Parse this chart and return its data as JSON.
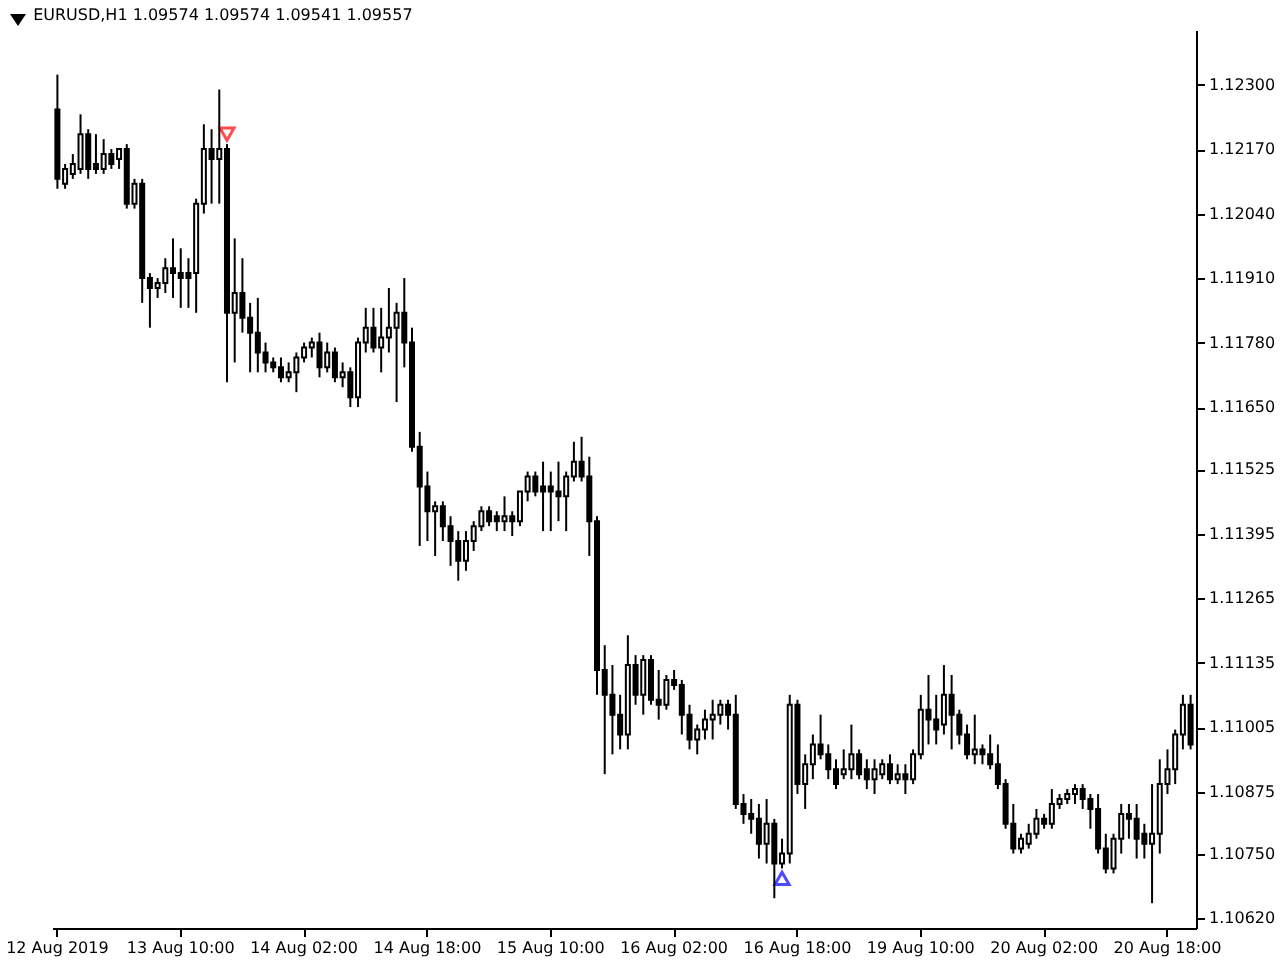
{
  "chart_data": {
    "type": "candlestick",
    "title": "EURUSD,H1  1.09574 1.09574 1.09541 1.09557",
    "color": "#000000",
    "categories": [
      "12 Aug 2019",
      null,
      null,
      null,
      null,
      null,
      null,
      null,
      null,
      null,
      null,
      null,
      null,
      null,
      null,
      null,
      "13 Aug 10:00",
      null,
      null,
      null,
      null,
      null,
      null,
      null,
      null,
      null,
      null,
      null,
      null,
      null,
      null,
      null,
      "14 Aug 02:00",
      null,
      null,
      null,
      null,
      null,
      null,
      null,
      null,
      null,
      null,
      null,
      null,
      null,
      null,
      null,
      "14 Aug 18:00",
      null,
      null,
      null,
      null,
      null,
      null,
      null,
      null,
      null,
      null,
      null,
      null,
      null,
      null,
      null,
      "15 Aug 10:00",
      null,
      null,
      null,
      null,
      null,
      null,
      null,
      null,
      null,
      null,
      null,
      null,
      null,
      null,
      null,
      "16 Aug 02:00",
      null,
      null,
      null,
      null,
      null,
      null,
      null,
      null,
      null,
      null,
      null,
      null,
      null,
      null,
      null,
      "16 Aug 18:00",
      null,
      null,
      null,
      null,
      null,
      null,
      null,
      null,
      null,
      null,
      null,
      null,
      null,
      null,
      null,
      "19 Aug 10:00",
      null,
      null,
      null,
      null,
      null,
      null,
      null,
      null,
      null,
      null,
      null,
      null,
      null,
      null,
      null,
      "20 Aug 02:00",
      null,
      null,
      null,
      null,
      null,
      null,
      null,
      null,
      null,
      null,
      null,
      null,
      null,
      null,
      null,
      "20 Aug 18:00",
      null,
      null,
      null
    ],
    "ohlc": [
      [
        1.1225,
        1.1232,
        1.1209,
        1.1211
      ],
      [
        1.121,
        1.1214,
        1.1209,
        1.1213
      ],
      [
        1.1212,
        1.1216,
        1.1211,
        1.1214
      ],
      [
        1.1213,
        1.1224,
        1.1212,
        1.122
      ],
      [
        1.122,
        1.1221,
        1.1211,
        1.1213
      ],
      [
        1.1214,
        1.122,
        1.1212,
        1.1213
      ],
      [
        1.1213,
        1.1219,
        1.1212,
        1.1216
      ],
      [
        1.1216,
        1.1217,
        1.1213,
        1.1214
      ],
      [
        1.1215,
        1.1217,
        1.1213,
        1.1217
      ],
      [
        1.1217,
        1.1218,
        1.1205,
        1.1206
      ],
      [
        1.1206,
        1.1211,
        1.1205,
        1.121
      ],
      [
        1.121,
        1.1211,
        1.1186,
        1.1191
      ],
      [
        1.1191,
        1.1192,
        1.1181,
        1.1189
      ],
      [
        1.1189,
        1.1191,
        1.1187,
        1.119
      ],
      [
        1.119,
        1.1195,
        1.1188,
        1.1193
      ],
      [
        1.1193,
        1.1199,
        1.1187,
        1.1192
      ],
      [
        1.1192,
        1.1197,
        1.1185,
        1.1191
      ],
      [
        1.1192,
        1.1195,
        1.1185,
        1.1191
      ],
      [
        1.1192,
        1.1207,
        1.1184,
        1.1206
      ],
      [
        1.1206,
        1.1222,
        1.1204,
        1.1217
      ],
      [
        1.1217,
        1.1221,
        1.1206,
        1.1215
      ],
      [
        1.1215,
        1.1229,
        1.1206,
        1.1217
      ],
      [
        1.1217,
        1.1218,
        1.117,
        1.1184
      ],
      [
        1.1184,
        1.1199,
        1.1174,
        1.1188
      ],
      [
        1.1188,
        1.1195,
        1.118,
        1.1183
      ],
      [
        1.1183,
        1.1186,
        1.1172,
        1.118
      ],
      [
        1.118,
        1.1187,
        1.1172,
        1.1176
      ],
      [
        1.1176,
        1.1178,
        1.1172,
        1.1174
      ],
      [
        1.1174,
        1.1175,
        1.1172,
        1.1173
      ],
      [
        1.1173,
        1.1175,
        1.117,
        1.1171
      ],
      [
        1.1171,
        1.1174,
        1.117,
        1.1172
      ],
      [
        1.1172,
        1.1176,
        1.1168,
        1.1175
      ],
      [
        1.1175,
        1.1178,
        1.1174,
        1.1177
      ],
      [
        1.1177,
        1.1179,
        1.1175,
        1.1178
      ],
      [
        1.1178,
        1.118,
        1.1171,
        1.1173
      ],
      [
        1.1173,
        1.1178,
        1.1172,
        1.1176
      ],
      [
        1.1176,
        1.1177,
        1.117,
        1.1171
      ],
      [
        1.1171,
        1.1174,
        1.1169,
        1.1172
      ],
      [
        1.1172,
        1.1173,
        1.1165,
        1.1167
      ],
      [
        1.1167,
        1.1179,
        1.1165,
        1.1178
      ],
      [
        1.1178,
        1.1185,
        1.1176,
        1.1181
      ],
      [
        1.1181,
        1.1185,
        1.1176,
        1.1177
      ],
      [
        1.1177,
        1.1185,
        1.1172,
        1.1179
      ],
      [
        1.1179,
        1.1189,
        1.1176,
        1.1181
      ],
      [
        1.1181,
        1.1186,
        1.1166,
        1.1184
      ],
      [
        1.1184,
        1.1191,
        1.1173,
        1.1178
      ],
      [
        1.1178,
        1.1181,
        1.1156,
        1.1157
      ],
      [
        1.1157,
        1.116,
        1.1137,
        1.1149
      ],
      [
        1.1149,
        1.1152,
        1.1138,
        1.1144
      ],
      [
        1.1144,
        1.1146,
        1.1135,
        1.1145
      ],
      [
        1.1145,
        1.1146,
        1.1138,
        1.1141
      ],
      [
        1.1141,
        1.1143,
        1.1133,
        1.1138
      ],
      [
        1.1138,
        1.114,
        1.113,
        1.1134
      ],
      [
        1.1134,
        1.114,
        1.1132,
        1.1138
      ],
      [
        1.1138,
        1.1142,
        1.1136,
        1.1141
      ],
      [
        1.1141,
        1.1145,
        1.114,
        1.1144
      ],
      [
        1.1144,
        1.1145,
        1.1141,
        1.1142
      ],
      [
        1.1143,
        1.1144,
        1.114,
        1.1142
      ],
      [
        1.1142,
        1.1147,
        1.114,
        1.1143
      ],
      [
        1.1143,
        1.1144,
        1.1139,
        1.1142
      ],
      [
        1.1142,
        1.1148,
        1.1141,
        1.1148
      ],
      [
        1.1148,
        1.1152,
        1.1146,
        1.1151
      ],
      [
        1.1151,
        1.1152,
        1.1147,
        1.1148
      ],
      [
        1.1149,
        1.1154,
        1.114,
        1.1148
      ],
      [
        1.1149,
        1.1152,
        1.114,
        1.1148
      ],
      [
        1.1148,
        1.1154,
        1.1142,
        1.1147
      ],
      [
        1.1147,
        1.1152,
        1.114,
        1.1151
      ],
      [
        1.1151,
        1.1158,
        1.115,
        1.1154
      ],
      [
        1.1154,
        1.1159,
        1.115,
        1.1151
      ],
      [
        1.1151,
        1.1155,
        1.1135,
        1.1142
      ],
      [
        1.1142,
        1.1143,
        1.1107,
        1.1112
      ],
      [
        1.1112,
        1.1117,
        1.1091,
        1.1107
      ],
      [
        1.1107,
        1.1113,
        1.1095,
        1.1103
      ],
      [
        1.1103,
        1.1107,
        1.1096,
        1.1099
      ],
      [
        1.1099,
        1.1119,
        1.1096,
        1.1113
      ],
      [
        1.1113,
        1.1115,
        1.1105,
        1.1107
      ],
      [
        1.1107,
        1.1115,
        1.1103,
        1.1114
      ],
      [
        1.1114,
        1.1115,
        1.1105,
        1.1106
      ],
      [
        1.1106,
        1.1112,
        1.1102,
        1.1105
      ],
      [
        1.1105,
        1.1111,
        1.1104,
        1.111
      ],
      [
        1.111,
        1.1112,
        1.1108,
        1.1109
      ],
      [
        1.1109,
        1.111,
        1.1099,
        1.1103
      ],
      [
        1.1103,
        1.1105,
        1.1096,
        1.1098
      ],
      [
        1.1098,
        1.1101,
        1.1095,
        1.11
      ],
      [
        1.11,
        1.1104,
        1.1098,
        1.1102
      ],
      [
        1.1102,
        1.1106,
        1.1098,
        1.1103
      ],
      [
        1.1103,
        1.1106,
        1.1101,
        1.1105
      ],
      [
        1.1105,
        1.1106,
        1.11,
        1.1103
      ],
      [
        1.1103,
        1.1107,
        1.1084,
        1.1085
      ],
      [
        1.1085,
        1.1087,
        1.1081,
        1.1083
      ],
      [
        1.1083,
        1.1086,
        1.1079,
        1.1082
      ],
      [
        1.1082,
        1.1085,
        1.1074,
        1.1077
      ],
      [
        1.1077,
        1.1086,
        1.1073,
        1.1081
      ],
      [
        1.1081,
        1.1082,
        1.1066,
        1.1073
      ],
      [
        1.1073,
        1.1078,
        1.1072,
        1.1075
      ],
      [
        1.1075,
        1.1107,
        1.1073,
        1.1105
      ],
      [
        1.1105,
        1.1106,
        1.1087,
        1.1089
      ],
      [
        1.1089,
        1.1095,
        1.1084,
        1.1093
      ],
      [
        1.1093,
        1.1099,
        1.109,
        1.1097
      ],
      [
        1.1097,
        1.1103,
        1.1094,
        1.1095
      ],
      [
        1.1095,
        1.1097,
        1.109,
        1.1092
      ],
      [
        1.1092,
        1.1094,
        1.1088,
        1.1089
      ],
      [
        1.1091,
        1.1096,
        1.109,
        1.1092
      ],
      [
        1.1092,
        1.1101,
        1.109,
        1.1095
      ],
      [
        1.1095,
        1.1096,
        1.109,
        1.1091
      ],
      [
        1.1092,
        1.1094,
        1.1088,
        1.109
      ],
      [
        1.109,
        1.1094,
        1.1087,
        1.1092
      ],
      [
        1.1091,
        1.1094,
        1.109,
        1.1093
      ],
      [
        1.1093,
        1.1095,
        1.1089,
        1.109
      ],
      [
        1.109,
        1.1093,
        1.1089,
        1.1091
      ],
      [
        1.1091,
        1.1093,
        1.1087,
        1.109
      ],
      [
        1.109,
        1.1096,
        1.1089,
        1.1095
      ],
      [
        1.1095,
        1.1107,
        1.1094,
        1.1104
      ],
      [
        1.1104,
        1.1111,
        1.1097,
        1.1102
      ],
      [
        1.1102,
        1.1107,
        1.1097,
        1.11
      ],
      [
        1.1101,
        1.1113,
        1.1099,
        1.1107
      ],
      [
        1.1107,
        1.1111,
        1.1096,
        1.1103
      ],
      [
        1.1103,
        1.1104,
        1.1097,
        1.1099
      ],
      [
        1.1099,
        1.1101,
        1.1094,
        1.1095
      ],
      [
        1.1095,
        1.1103,
        1.1093,
        1.1096
      ],
      [
        1.1096,
        1.1097,
        1.1093,
        1.1095
      ],
      [
        1.1095,
        1.1099,
        1.1092,
        1.1093
      ],
      [
        1.1093,
        1.1097,
        1.1088,
        1.1089
      ],
      [
        1.1089,
        1.109,
        1.108,
        1.1081
      ],
      [
        1.1081,
        1.1085,
        1.1075,
        1.1076
      ],
      [
        1.1076,
        1.1079,
        1.1075,
        1.1078
      ],
      [
        1.1077,
        1.1081,
        1.1076,
        1.1079
      ],
      [
        1.1079,
        1.1084,
        1.1078,
        1.1082
      ],
      [
        1.1082,
        1.1083,
        1.108,
        1.1081
      ],
      [
        1.1081,
        1.1088,
        1.108,
        1.1085
      ],
      [
        1.1085,
        1.1087,
        1.1084,
        1.1086
      ],
      [
        1.1086,
        1.1088,
        1.1085,
        1.1087
      ],
      [
        1.1087,
        1.1089,
        1.1085,
        1.1088
      ],
      [
        1.1088,
        1.1089,
        1.1084,
        1.1086
      ],
      [
        1.1086,
        1.1087,
        1.108,
        1.1084
      ],
      [
        1.1084,
        1.1087,
        1.1075,
        1.1076
      ],
      [
        1.1076,
        1.1079,
        1.1071,
        1.1072
      ],
      [
        1.1072,
        1.1079,
        1.1071,
        1.1078
      ],
      [
        1.1078,
        1.1085,
        1.1075,
        1.1083
      ],
      [
        1.1083,
        1.1085,
        1.1078,
        1.1082
      ],
      [
        1.1082,
        1.1085,
        1.1074,
        1.1078
      ],
      [
        1.1079,
        1.1081,
        1.1074,
        1.1077
      ],
      [
        1.1077,
        1.1089,
        1.1065,
        1.1079
      ],
      [
        1.1079,
        1.1094,
        1.1075,
        1.1089
      ],
      [
        1.1089,
        1.1096,
        1.1087,
        1.1092
      ],
      [
        1.1092,
        1.11,
        1.1089,
        1.1099
      ],
      [
        1.1099,
        1.1107,
        1.1096,
        1.1105
      ],
      [
        1.1105,
        1.1107,
        1.1096,
        1.1097
      ]
    ],
    "series": [
      {
        "type": "scatter",
        "color": "#ff0000",
        "marker": "triangle",
        "values": [
          null,
          null,
          null,
          null,
          null,
          null,
          null,
          null,
          null,
          null,
          null,
          null,
          null,
          null,
          null,
          null,
          null,
          null,
          null,
          null,
          null,
          null,
          1.122,
          null,
          null,
          null,
          null,
          null,
          null,
          null,
          null,
          null,
          null,
          null,
          null,
          null,
          null,
          null,
          null,
          null,
          null,
          null,
          null,
          null,
          null,
          null,
          null,
          null,
          null,
          null,
          null,
          null,
          null,
          null,
          null,
          null,
          null,
          null,
          null,
          null,
          null,
          null,
          null,
          null,
          null,
          null,
          null,
          null,
          null,
          null,
          null,
          null,
          null,
          null,
          null,
          null,
          null,
          null,
          null,
          null,
          null,
          null,
          null,
          null,
          null,
          null,
          null,
          null,
          null,
          null,
          null,
          null,
          null,
          null,
          null,
          null,
          null,
          null,
          null,
          null,
          null,
          null,
          null,
          null,
          null,
          null,
          null,
          null,
          null,
          null,
          null,
          null,
          null,
          null,
          null,
          null,
          null,
          null,
          null,
          null,
          null,
          null,
          null,
          null,
          null,
          null,
          null,
          null,
          null,
          null,
          null,
          null,
          null,
          null,
          null,
          null,
          null,
          null,
          null,
          null,
          null,
          null,
          null,
          null,
          null,
          null,
          null,
          null
        ]
      },
      {
        "type": "scatter",
        "color": "#0000ff",
        "marker": "triangle",
        "values": [
          null,
          null,
          null,
          null,
          null,
          null,
          null,
          null,
          null,
          null,
          null,
          null,
          null,
          null,
          null,
          null,
          null,
          null,
          null,
          null,
          null,
          null,
          null,
          null,
          null,
          null,
          null,
          null,
          null,
          null,
          null,
          null,
          null,
          null,
          null,
          null,
          null,
          null,
          null,
          null,
          null,
          null,
          null,
          null,
          null,
          null,
          null,
          null,
          null,
          null,
          null,
          null,
          null,
          null,
          null,
          null,
          null,
          null,
          null,
          null,
          null,
          null,
          null,
          null,
          null,
          null,
          null,
          null,
          null,
          null,
          null,
          null,
          null,
          null,
          null,
          null,
          null,
          null,
          null,
          null,
          null,
          null,
          null,
          null,
          null,
          null,
          null,
          null,
          null,
          null,
          null,
          null,
          null,
          null,
          1.107,
          null,
          null,
          null,
          null,
          null,
          null,
          null,
          null,
          null,
          null,
          null,
          null,
          null,
          null,
          null,
          null,
          null,
          null,
          null,
          null,
          null,
          null,
          null,
          null,
          null,
          null,
          null,
          null,
          null,
          null,
          null,
          null,
          null,
          null,
          null,
          null,
          null,
          null,
          null,
          null,
          null,
          null,
          null,
          null,
          null,
          null,
          null,
          null,
          null,
          null,
          null,
          null,
          null
        ]
      }
    ],
    "ylim": [
      1.106,
      1.1241
    ],
    "yticks": [
      {
        "value": 1.123,
        "label": "1.12300"
      },
      {
        "value": 1.1217,
        "label": "1.12170"
      },
      {
        "value": 1.1204,
        "label": "1.12040"
      },
      {
        "value": 1.1191,
        "label": "1.11910"
      },
      {
        "value": 1.1178,
        "label": "1.11780"
      },
      {
        "value": 1.1165,
        "label": "1.11650"
      },
      {
        "value": 1.11525,
        "label": "1.11525"
      },
      {
        "value": 1.11395,
        "label": "1.11395"
      },
      {
        "value": 1.11265,
        "label": "1.11265"
      },
      {
        "value": 1.11135,
        "label": "1.11135"
      },
      {
        "value": 1.11005,
        "label": "1.11005"
      },
      {
        "value": 1.10875,
        "label": "1.10875"
      },
      {
        "value": 1.1075,
        "label": "1.10750"
      },
      {
        "value": 1.1062,
        "label": "1.10620"
      }
    ],
    "grid": false
  }
}
